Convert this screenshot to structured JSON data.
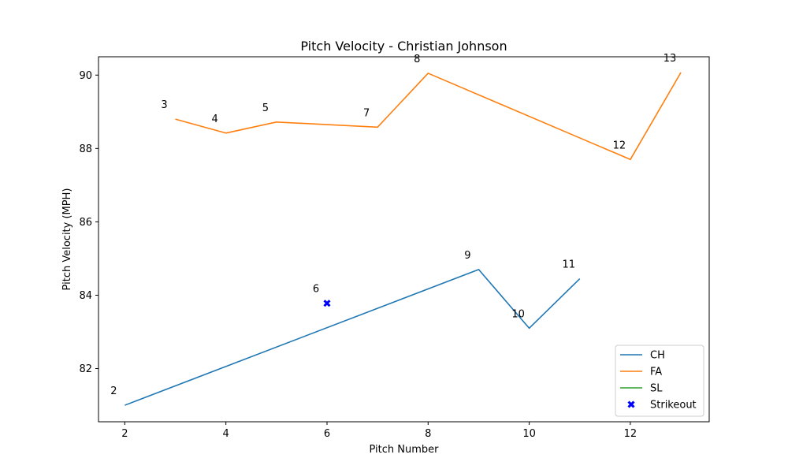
{
  "chart_data": {
    "type": "line",
    "title": "Pitch Velocity - Christian Johnson",
    "xlabel": "Pitch Number",
    "ylabel": "Pitch Velocity (MPH)",
    "xlim": [
      1.48,
      13.56
    ],
    "ylim": [
      80.55,
      90.5
    ],
    "x_ticks": [
      2,
      4,
      6,
      8,
      10,
      12
    ],
    "y_ticks": [
      82,
      84,
      86,
      88,
      90
    ],
    "grid": false,
    "legend_position": "lower right",
    "series": [
      {
        "name": "CH",
        "color": "#1f77b4",
        "points": [
          {
            "x": 2,
            "y": 81.0
          },
          {
            "x": 9,
            "y": 84.7
          },
          {
            "x": 10,
            "y": 83.1
          },
          {
            "x": 11,
            "y": 84.45
          }
        ]
      },
      {
        "name": "FA",
        "color": "#ff7f0e",
        "points": [
          {
            "x": 3,
            "y": 88.8
          },
          {
            "x": 4,
            "y": 88.42
          },
          {
            "x": 5,
            "y": 88.72
          },
          {
            "x": 7,
            "y": 88.58
          },
          {
            "x": 8,
            "y": 90.05
          },
          {
            "x": 12,
            "y": 87.7
          },
          {
            "x": 13,
            "y": 90.07
          }
        ]
      },
      {
        "name": "SL",
        "color": "#2ca02c",
        "points": []
      }
    ],
    "strikeouts": {
      "name": "Strikeout",
      "color": "#0000ff",
      "marker": "x-filled",
      "points": [
        {
          "x": 6,
          "y": 83.78
        }
      ]
    },
    "annotations": [
      {
        "text": "2",
        "x": 2,
        "y": 81.0
      },
      {
        "text": "3",
        "x": 3,
        "y": 88.8
      },
      {
        "text": "4",
        "x": 4,
        "y": 88.42
      },
      {
        "text": "5",
        "x": 5,
        "y": 88.72
      },
      {
        "text": "6",
        "x": 6,
        "y": 83.78
      },
      {
        "text": "7",
        "x": 7,
        "y": 88.58
      },
      {
        "text": "8",
        "x": 8,
        "y": 90.05
      },
      {
        "text": "9",
        "x": 9,
        "y": 84.7
      },
      {
        "text": "10",
        "x": 10,
        "y": 83.1
      },
      {
        "text": "11",
        "x": 11,
        "y": 84.45
      },
      {
        "text": "12",
        "x": 12,
        "y": 87.7
      },
      {
        "text": "13",
        "x": 13,
        "y": 90.07
      }
    ]
  }
}
